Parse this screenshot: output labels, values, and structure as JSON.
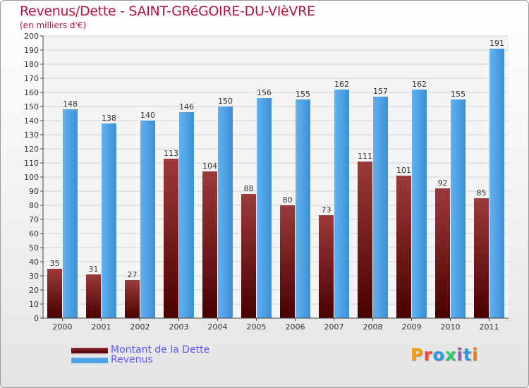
{
  "title": "Revenus/Dette - SAINT-GRéGOIRE-DU-VIèVRE",
  "subtitle": "(en milliers d'€)",
  "logo": {
    "text": "Proxiti",
    "colors": [
      "#f39c12",
      "#e74c3c",
      "#3498db",
      "#2ecc71",
      "#9b59b6",
      "#3498db",
      "#e67e22"
    ]
  },
  "legend": [
    {
      "label": "Montant de la Dette",
      "color": "#6b1010"
    },
    {
      "label": "Revenus",
      "color": "#4fa3e6"
    }
  ],
  "chart_data": {
    "type": "bar",
    "title": "Revenus/Dette - SAINT-GRéGOIRE-DU-VIèVRE",
    "ylabel": "(en milliers d'€)",
    "categories": [
      "2000",
      "2001",
      "2002",
      "2003",
      "2004",
      "2005",
      "2006",
      "2007",
      "2008",
      "2009",
      "2010",
      "2011"
    ],
    "series": [
      {
        "name": "Montant de la Dette",
        "color": "#6b1010",
        "values": [
          35,
          31,
          27,
          113,
          104,
          88,
          80,
          73,
          111,
          101,
          92,
          85
        ]
      },
      {
        "name": "Revenus",
        "color": "#4fa3e6",
        "values": [
          148,
          138,
          140,
          146,
          150,
          156,
          155,
          162,
          157,
          162,
          155,
          191
        ]
      }
    ],
    "ylim": [
      0,
      200
    ],
    "yticks": [
      0,
      10,
      20,
      30,
      40,
      50,
      60,
      70,
      80,
      90,
      100,
      110,
      120,
      130,
      140,
      150,
      160,
      170,
      180,
      190,
      200
    ],
    "grid": true,
    "legend_position": "bottom-left"
  }
}
